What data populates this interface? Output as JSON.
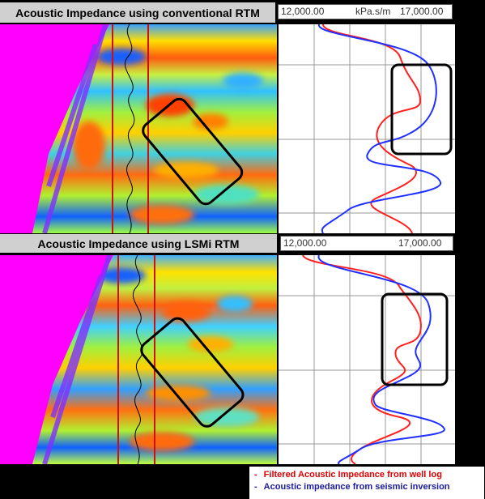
{
  "top": {
    "title": "Acoustic Impedance using conventional RTM",
    "scale_min": "12,000.00",
    "scale_unit": "kPa.s/m",
    "scale_max": "17,000.00"
  },
  "bottom": {
    "title": "Acoustic Impedance using LSMi RTM",
    "scale_min": "12,000.00",
    "scale_max": "17,000.00"
  },
  "legend": {
    "items": [
      {
        "bullet": "-",
        "label": "Filtered Acoustic Impedance from well log",
        "color": "#e00000"
      },
      {
        "bullet": "-",
        "label": "Acoustic impedance from seismic inversion",
        "color": "#1a1aa0"
      }
    ]
  },
  "colors": {
    "well_log": "#ff2020",
    "seismic_inversion": "#2030ff",
    "well_markers": "#d01010",
    "highlight_box": "#000000"
  }
}
